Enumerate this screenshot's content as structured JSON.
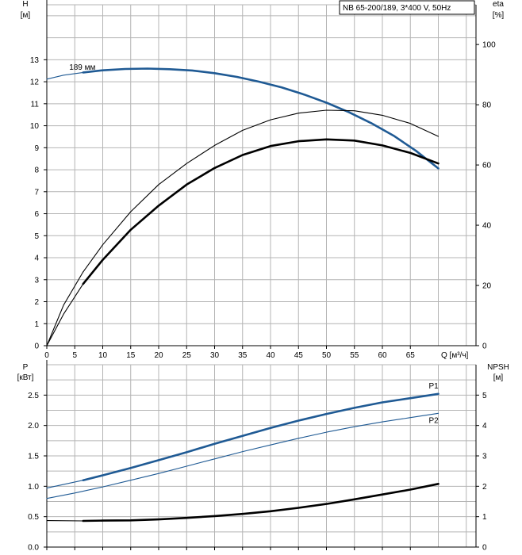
{
  "title_box": "NB 65-200/189, 3*400 V, 50Hz",
  "colors": {
    "grid": "#b4b4b4",
    "axis": "#000000",
    "blue": "#1f5a94",
    "black": "#000000"
  },
  "chart_data": [
    {
      "type": "line",
      "name": "upper",
      "xlabel": "Q [м³/ч]",
      "x_ticks": [
        0,
        5,
        10,
        15,
        20,
        25,
        30,
        35,
        40,
        45,
        50,
        55,
        60,
        65
      ],
      "xlim": [
        0,
        70
      ],
      "grid": true,
      "y_axes": [
        {
          "side": "left",
          "label_top": "H",
          "label_unit": "[м]",
          "ylim": [
            0,
            15.5
          ],
          "ticks": [
            0,
            1,
            2,
            3,
            4,
            5,
            6,
            7,
            8,
            9,
            10,
            11,
            12,
            13
          ]
        },
        {
          "side": "right",
          "label_top": "eta",
          "label_unit": "[%]",
          "ylim": [
            0,
            113.2
          ],
          "ticks": [
            0,
            20,
            40,
            60,
            80,
            100
          ]
        }
      ],
      "annotations": [
        {
          "text": "189 мм",
          "x": 4.0,
          "y": 12.5
        }
      ],
      "series": [
        {
          "axis": "left",
          "color": "blue",
          "style": "thin",
          "x": [
            0,
            3,
            6.5
          ],
          "y": [
            12.12,
            12.3,
            12.42
          ]
        },
        {
          "axis": "left",
          "color": "blue",
          "style": "thick",
          "x": [
            6.5,
            10,
            14,
            18,
            22,
            26,
            30,
            34,
            38,
            42,
            46,
            50,
            54,
            58,
            62,
            66,
            70
          ],
          "y": [
            12.42,
            12.52,
            12.58,
            12.6,
            12.57,
            12.51,
            12.39,
            12.22,
            12.0,
            11.74,
            11.42,
            11.05,
            10.62,
            10.12,
            9.55,
            8.86,
            8.06
          ]
        },
        {
          "axis": "right",
          "color": "black",
          "style": "thin",
          "x": [
            0,
            3,
            6.5
          ],
          "y": [
            0,
            13.5,
            24.5
          ]
        },
        {
          "axis": "right",
          "color": "black",
          "style": "thin",
          "x": [
            6.5,
            10,
            15,
            20,
            25,
            30,
            35,
            40,
            45,
            50,
            55,
            60,
            65,
            70
          ],
          "y": [
            24.5,
            33.5,
            44.5,
            53.5,
            60.5,
            66.5,
            71.5,
            75.0,
            77.2,
            78.2,
            78.0,
            76.5,
            73.8,
            69.5
          ]
        },
        {
          "axis": "right",
          "color": "black",
          "style": "thin",
          "x": [
            0,
            3,
            6.5
          ],
          "y": [
            0,
            10.5,
            20.5
          ]
        },
        {
          "axis": "right",
          "color": "black",
          "style": "thick",
          "x": [
            6.5,
            10,
            15,
            20,
            25,
            30,
            35,
            40,
            45,
            50,
            55,
            60,
            65,
            70
          ],
          "y": [
            20.5,
            28.5,
            38.5,
            46.5,
            53.5,
            59.0,
            63.3,
            66.3,
            67.9,
            68.5,
            68.1,
            66.5,
            64.0,
            60.5
          ]
        }
      ]
    },
    {
      "type": "line",
      "name": "lower",
      "xlim": [
        0,
        70
      ],
      "grid": true,
      "y_axes": [
        {
          "side": "left",
          "label_top": "P",
          "label_unit": "[кВт]",
          "ylim": [
            0,
            3.0
          ],
          "ticks": [
            "0.0",
            "0.5",
            "1.0",
            "1.5",
            "2.0",
            "2.5"
          ]
        },
        {
          "side": "right",
          "label_top": "NPSH",
          "label_unit": "[м]",
          "ylim": [
            0,
            6.0
          ],
          "ticks": [
            0,
            1,
            2,
            3,
            4,
            5
          ]
        }
      ],
      "series": [
        {
          "name": "P1",
          "axis": "left",
          "color": "blue",
          "style": "thin",
          "x": [
            0,
            6.5
          ],
          "y": [
            0.97,
            1.1
          ]
        },
        {
          "name": "P1",
          "axis": "left",
          "color": "blue",
          "style": "thick",
          "label_at_end": true,
          "x": [
            6.5,
            10,
            15,
            20,
            25,
            30,
            35,
            40,
            45,
            50,
            55,
            60,
            65,
            70
          ],
          "y": [
            1.1,
            1.18,
            1.3,
            1.43,
            1.56,
            1.7,
            1.83,
            1.96,
            2.08,
            2.19,
            2.29,
            2.38,
            2.45,
            2.52
          ]
        },
        {
          "name": "P2",
          "axis": "left",
          "color": "blue",
          "style": "thin",
          "label_at_end": true,
          "x": [
            0,
            5,
            10,
            15,
            20,
            25,
            30,
            35,
            40,
            45,
            50,
            55,
            60,
            65,
            70
          ],
          "y": [
            0.8,
            0.89,
            0.99,
            1.1,
            1.21,
            1.33,
            1.45,
            1.57,
            1.68,
            1.79,
            1.89,
            1.98,
            2.06,
            2.13,
            2.2
          ]
        },
        {
          "axis": "right",
          "color": "black",
          "style": "thin",
          "x": [
            0,
            6.5
          ],
          "y": [
            0.87,
            0.86
          ]
        },
        {
          "axis": "right",
          "color": "black",
          "style": "thick",
          "x": [
            6.5,
            10,
            15,
            20,
            25,
            30,
            35,
            40,
            45,
            50,
            55,
            60,
            65,
            70
          ],
          "y": [
            0.86,
            0.87,
            0.88,
            0.91,
            0.96,
            1.02,
            1.09,
            1.18,
            1.29,
            1.42,
            1.57,
            1.73,
            1.89,
            2.08
          ]
        }
      ]
    }
  ]
}
